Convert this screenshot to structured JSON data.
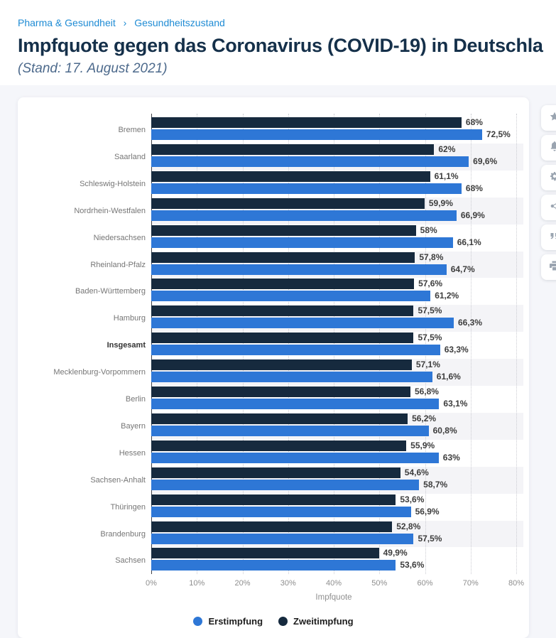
{
  "breadcrumb": {
    "items": [
      {
        "label": "Pharma & Gesundheit"
      },
      {
        "label": "Gesundheitszustand"
      }
    ],
    "separator": "›"
  },
  "header": {
    "title": "Impfquote gegen das Coronavirus (COVID-19) in Deutschla",
    "subtitle": "(Stand: 17. August 2021)"
  },
  "toolbar": {
    "buttons": [
      {
        "icon": "star-icon"
      },
      {
        "icon": "bell-icon"
      },
      {
        "icon": "gear-icon"
      },
      {
        "icon": "share-icon"
      },
      {
        "icon": "quote-icon"
      },
      {
        "icon": "print-icon"
      }
    ]
  },
  "colors": {
    "erstimpfung_blue": "#2e77d6",
    "zweitimpfung_navy": "#162a3e",
    "breadcrumb_link": "#1e8bd4",
    "title_navy": "#15304a",
    "page_background": "#f5f6fa",
    "stripe_gray": "#f4f4f7"
  },
  "chart_data": {
    "type": "bar",
    "orientation": "horizontal",
    "categories": [
      "Bremen",
      "Saarland",
      "Schleswig-Holstein",
      "Nordrhein-Westfalen",
      "Niedersachsen",
      "Rheinland-Pfalz",
      "Baden-Württemberg",
      "Hamburg",
      "Insgesamt",
      "Mecklenburg-Vorpommern",
      "Berlin",
      "Bayern",
      "Hessen",
      "Sachsen-Anhalt",
      "Thüringen",
      "Brandenburg",
      "Sachsen"
    ],
    "bold_category": "Insgesamt",
    "series": [
      {
        "name": "Erstimpfung",
        "color": "#2e77d6",
        "values": [
          72.5,
          69.6,
          68,
          66.9,
          66.1,
          64.7,
          61.2,
          66.3,
          63.3,
          61.6,
          63.1,
          60.8,
          63,
          58.7,
          56.9,
          57.5,
          53.6
        ],
        "labels": [
          "72,5%",
          "69,6%",
          "68%",
          "66,9%",
          "66,1%",
          "64,7%",
          "61,2%",
          "66,3%",
          "63,3%",
          "61,6%",
          "63,1%",
          "60,8%",
          "63%",
          "58,7%",
          "56,9%",
          "57,5%",
          "53,6%"
        ]
      },
      {
        "name": "Zweitimpfung",
        "color": "#162a3e",
        "values": [
          68,
          62,
          61.1,
          59.9,
          58,
          57.8,
          57.6,
          57.5,
          57.5,
          57.1,
          56.8,
          56.2,
          55.9,
          54.6,
          53.6,
          52.8,
          49.9
        ],
        "labels": [
          "68%",
          "62%",
          "61,1%",
          "59,9%",
          "58%",
          "57,8%",
          "57,6%",
          "57,5%",
          "57,5%",
          "57,1%",
          "56,8%",
          "56,2%",
          "55,9%",
          "54,6%",
          "53,6%",
          "52,8%",
          "49,9%"
        ]
      }
    ],
    "row_order": [
      "Zweitimpfung",
      "Erstimpfung"
    ],
    "xlabel": "Impfquote",
    "xlim": [
      0,
      80
    ],
    "xticks": [
      "0%",
      "10%",
      "20%",
      "30%",
      "40%",
      "50%",
      "60%",
      "70%",
      "80%"
    ],
    "grid": "vertical-dotted",
    "legend_position": "bottom-center"
  }
}
